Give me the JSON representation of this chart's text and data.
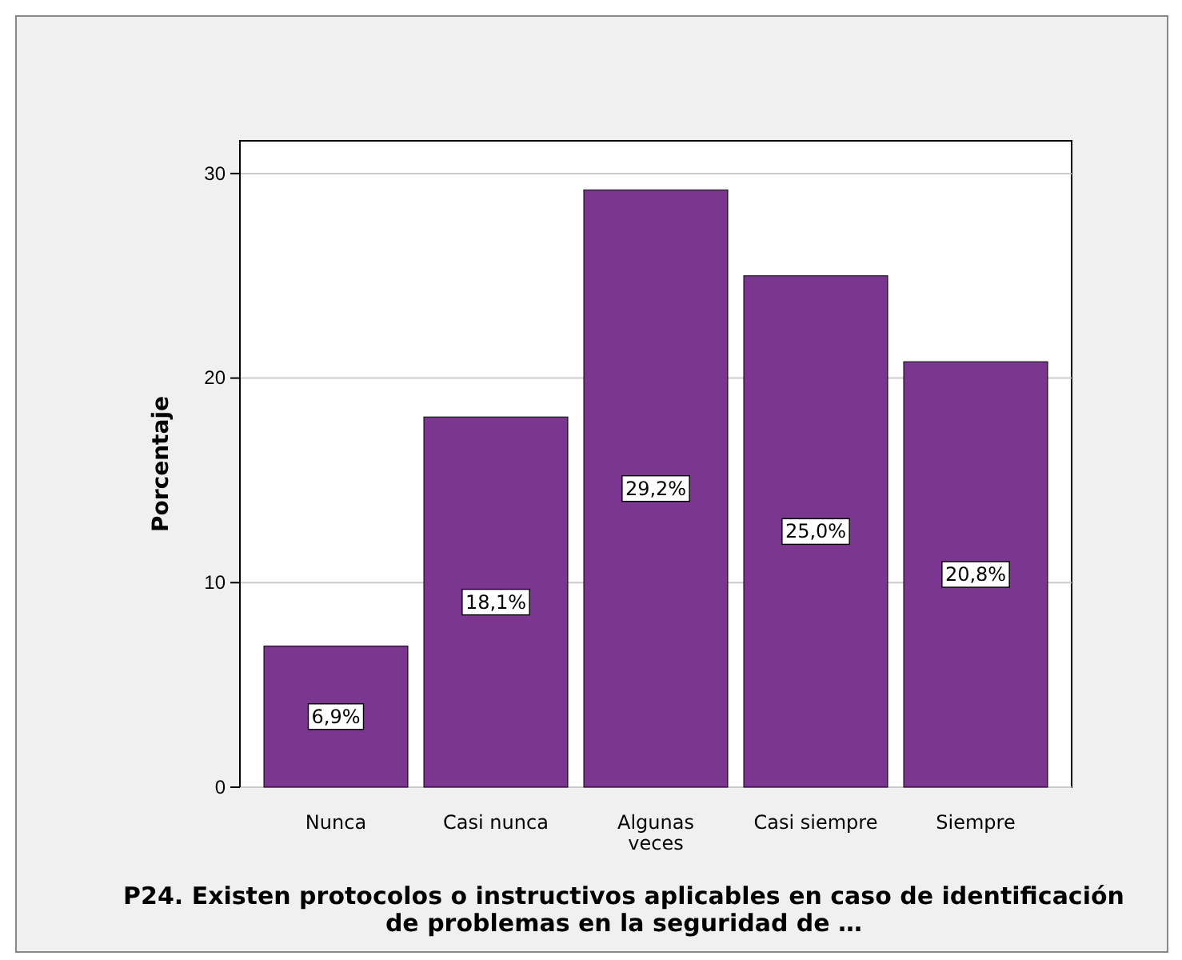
{
  "chart_data": {
    "type": "bar",
    "categories": [
      "Nunca",
      "Casi nunca",
      "Algunas veces",
      "Casi siempre",
      "Siempre"
    ],
    "values": [
      6.9,
      18.1,
      29.2,
      25.0,
      20.8
    ],
    "value_labels": [
      "6,9%",
      "18,1%",
      "29,2%",
      "25,0%",
      "20,8%"
    ],
    "color": "#7b378f",
    "ylabel": "Porcentaje",
    "xlabel": "P24. Existen protocolos o instructivos aplicables en caso de identificación de problemas en la seguridad de …",
    "ylim": [
      0,
      31.6
    ],
    "yticks": [
      0,
      10,
      20,
      30
    ],
    "grid": "y"
  }
}
